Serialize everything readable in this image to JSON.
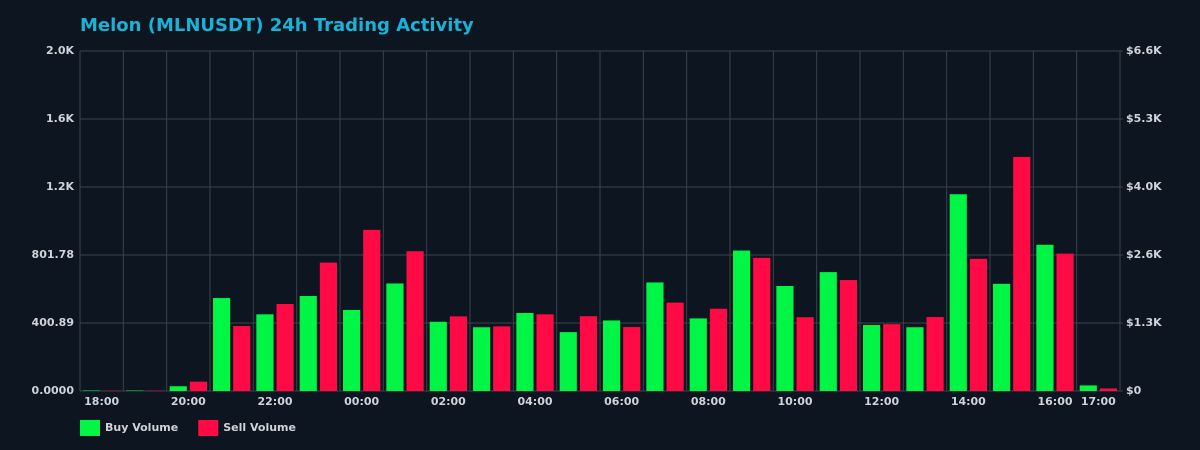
{
  "chart_data": {
    "type": "bar",
    "title": "Melon (MLNUSDT) 24h Trading Activity",
    "categories": [
      "18:00",
      null,
      "20:00",
      null,
      "22:00",
      null,
      "00:00",
      null,
      "02:00",
      null,
      "04:00",
      null,
      "06:00",
      null,
      "08:00",
      null,
      "10:00",
      null,
      "12:00",
      null,
      "14:00",
      null,
      "16:00",
      "17:00"
    ],
    "series": [
      {
        "name": "Buy Volume",
        "color": "#00f545",
        "values": [
          3,
          3,
          28,
          548,
          452,
          560,
          478,
          634,
          408,
          376,
          460,
          347,
          416,
          640,
          428,
          828,
          619,
          701,
          389,
          376,
          1160,
          632,
          862,
          33
        ]
      },
      {
        "name": "Sell Volume",
        "color": "#ff0a45",
        "values": [
          2,
          2,
          55,
          383,
          513,
          757,
          950,
          824,
          440,
          381,
          452,
          441,
          377,
          521,
          485,
          785,
          435,
          654,
          394,
          436,
          779,
          1380,
          810,
          15
        ]
      }
    ],
    "ylim": [
      0,
      2004.45
    ],
    "yticks": [
      {
        "value": 0,
        "label": "0.0000"
      },
      400.89,
      801.78,
      {
        "value": 1202.67,
        "label": "1.2K"
      },
      {
        "value": 1603.56,
        "label": "1.6K"
      },
      {
        "value": 2004.45,
        "label": "2.0K"
      }
    ],
    "y2lim": [
      0,
      6600
    ],
    "y2ticks": [
      {
        "value": 0,
        "label": "$0"
      },
      {
        "value": 1320,
        "label": "$1.3K"
      },
      {
        "value": 2640,
        "label": "$2.6K"
      },
      {
        "value": 3960,
        "label": "$4.0K"
      },
      {
        "value": 5280,
        "label": "$5.3K"
      },
      {
        "value": 6600,
        "label": "$6.6K"
      }
    ],
    "grid": true,
    "legend": "bottom-left"
  }
}
